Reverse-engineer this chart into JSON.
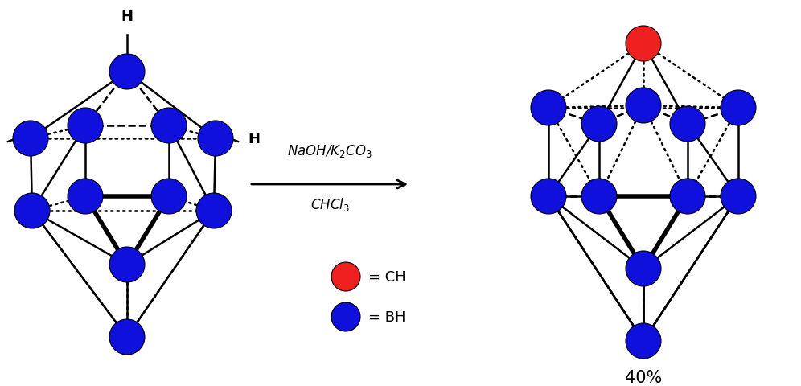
{
  "blue_color": "#1010DD",
  "red_color": "#EE2020",
  "bg_color": "#FFFFFF",
  "bond_color": "#000000",
  "yield_text": "40%",
  "legend_ch": "= CH",
  "legend_bh": "= BH",
  "figsize": [
    9.96,
    4.81
  ],
  "dpi": 100
}
